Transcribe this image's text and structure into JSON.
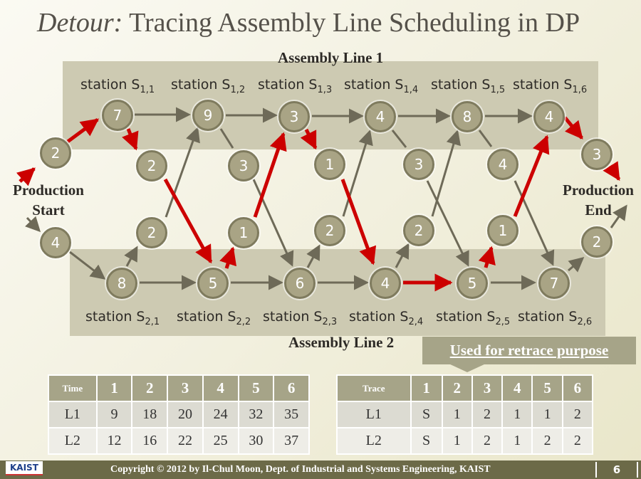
{
  "title": {
    "italic": "Detour:",
    "rest": "Tracing Assembly Line Scheduling in DP"
  },
  "line1_label": "Assembly Line 1",
  "line2_label": "Assembly Line 2",
  "start_label": {
    "l1": "Production",
    "l2": "Start"
  },
  "end_label": {
    "l1": "Production",
    "l2": "End"
  },
  "stations1": [
    {
      "name": "station S",
      "sub": "1,1"
    },
    {
      "name": "station S",
      "sub": "1,2"
    },
    {
      "name": "station S",
      "sub": "1,3"
    },
    {
      "name": "station S",
      "sub": "1,4"
    },
    {
      "name": "station S",
      "sub": "1,5"
    },
    {
      "name": "station S",
      "sub": "1,6"
    }
  ],
  "stations2": [
    {
      "name": "station S",
      "sub": "2,1"
    },
    {
      "name": "station S",
      "sub": "2,2"
    },
    {
      "name": "station S",
      "sub": "2,3"
    },
    {
      "name": "station S",
      "sub": "2,4"
    },
    {
      "name": "station S",
      "sub": "2,5"
    },
    {
      "name": "station S",
      "sub": "2,6"
    }
  ],
  "nodes": {
    "entry1": "2",
    "entry2": "4",
    "exit1": "3",
    "exit2": "2",
    "s1": [
      "7",
      "9",
      "3",
      "4",
      "8",
      "4"
    ],
    "s2": [
      "8",
      "5",
      "6",
      "4",
      "5",
      "7"
    ],
    "t12": [
      "2",
      "3",
      "1",
      "3",
      "4"
    ],
    "t21": [
      "2",
      "1",
      "2",
      "2",
      "1"
    ]
  },
  "callout": "Used for retrace purpose",
  "time_table": {
    "header": [
      "Time",
      "1",
      "2",
      "3",
      "4",
      "5",
      "6"
    ],
    "rows": [
      [
        "L1",
        "9",
        "18",
        "20",
        "24",
        "32",
        "35"
      ],
      [
        "L2",
        "12",
        "16",
        "22",
        "25",
        "30",
        "37"
      ]
    ]
  },
  "trace_table": {
    "header": [
      "Trace",
      "1",
      "2",
      "3",
      "4",
      "5",
      "6"
    ],
    "rows": [
      [
        "L1",
        "S",
        "1",
        "2",
        "1",
        "1",
        "2"
      ],
      [
        "L2",
        "S",
        "1",
        "2",
        "1",
        "2",
        "2"
      ]
    ]
  },
  "footer": {
    "logo": "KAIST",
    "copyright": "Copyright © 2012 by Il-Chul Moon, Dept. of Industrial and Systems Engineering, KAIST",
    "page": "6"
  },
  "colors": {
    "highlight_arrow": "#cc0000",
    "normal_arrow": "#6e6a58",
    "node_fill": "#a9a485",
    "band": "#cdcab2"
  }
}
